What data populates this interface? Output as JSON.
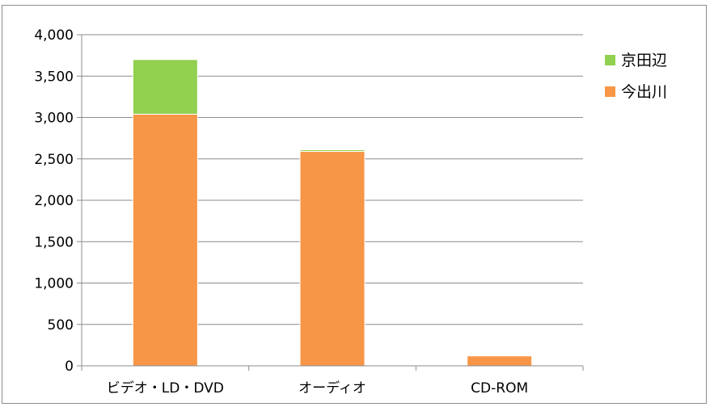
{
  "chart_data": {
    "type": "bar",
    "stacked": true,
    "categories": [
      "ビデオ・LD・DVD",
      "オーディオ",
      "CD-ROM"
    ],
    "series": [
      {
        "name": "今出川",
        "values": [
          3040,
          2590,
          120
        ],
        "color": "#f79646"
      },
      {
        "name": "京田辺",
        "values": [
          660,
          20,
          0
        ],
        "color": "#92d050"
      }
    ],
    "ylim": [
      0,
      4000
    ],
    "yticks": [
      0,
      500,
      1000,
      1500,
      2000,
      2500,
      3000,
      3500,
      4000
    ],
    "ytick_labels": [
      "0",
      "500",
      "1,000",
      "1,500",
      "2,000",
      "2,500",
      "3,000",
      "3,500",
      "4,000"
    ],
    "grid": true,
    "legend": {
      "position": "right",
      "entries": [
        {
          "label": "京田辺",
          "color": "#92d050"
        },
        {
          "label": "今出川",
          "color": "#f79646"
        }
      ]
    }
  }
}
